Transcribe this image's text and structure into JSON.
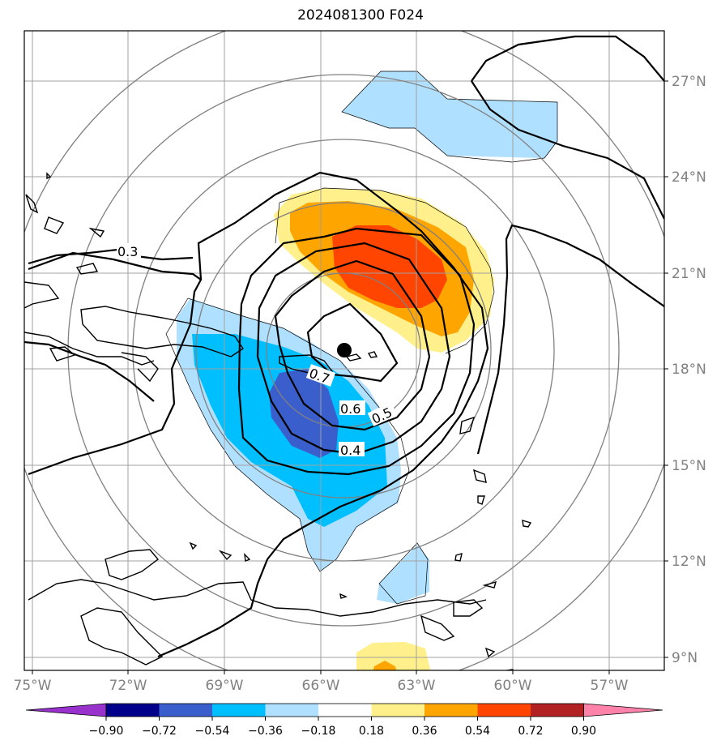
{
  "title": "2024081300 F024",
  "lon_ticks": [
    "75°W",
    "72°W",
    "69°W",
    "66°W",
    "63°W",
    "60°W",
    "57°W"
  ],
  "lat_ticks": [
    "27°N",
    "24°N",
    "21°N",
    "18°N",
    "15°N",
    "12°N",
    "9°N"
  ],
  "contour_labels": [
    "0.3",
    "0.4",
    "0.5",
    "0.6",
    "0.7"
  ],
  "colorbar": {
    "labels": [
      "−0.90",
      "−0.72",
      "−0.54",
      "−0.36",
      "−0.18",
      "0.18",
      "0.36",
      "0.54",
      "0.72",
      "0.90"
    ],
    "colors": [
      "#9932cc",
      "#00008b",
      "#3a5fcd",
      "#00bfff",
      "#b0e0ff",
      "#ffffff",
      "#fff08c",
      "#ffa500",
      "#ff4500",
      "#b22222",
      "#ff82ab"
    ]
  },
  "map": {
    "lon_range": [
      "75°W",
      "55°W"
    ],
    "lat_range": [
      "8.5°N",
      "28.5°N"
    ],
    "center_marker": "storm-center",
    "grid": true
  }
}
